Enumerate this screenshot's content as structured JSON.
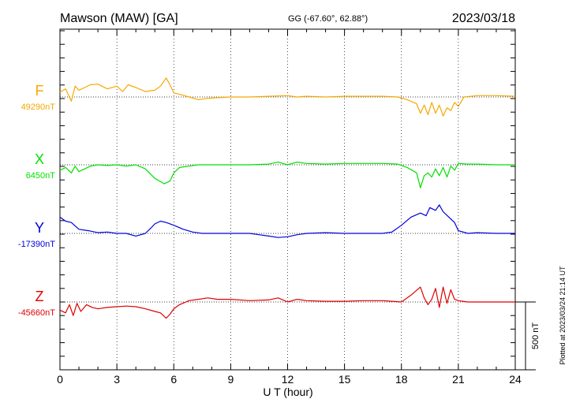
{
  "header": {
    "station": "Mawson (MAW)  [GA]",
    "coords": "GG (-67.60°,  62.88°)",
    "date": "2023/03/18"
  },
  "footer": {
    "plotted_note": "Plotted at 2023/03/24 21:14 UT",
    "scale_bar_label": "500 nT"
  },
  "colors": {
    "F": "#f5a800",
    "X": "#00e000",
    "Y": "#0000dd",
    "Z": "#e00000"
  },
  "chart_data": {
    "type": "line",
    "title": "",
    "xlabel": "U T (hour)",
    "xlim": [
      0,
      24
    ],
    "x_ticks": [
      0,
      3,
      6,
      9,
      12,
      15,
      18,
      21,
      24
    ],
    "x_tick_labels": [
      "0",
      "3",
      "6",
      "9",
      "12",
      "15",
      "18",
      "21",
      "24"
    ],
    "grid": true,
    "scale_bar_nT": 500,
    "series": [
      {
        "name": "F",
        "baseline_label": "49290nT",
        "baseline_nT": 49290,
        "x": [
          0,
          0.3,
          0.6,
          0.8,
          1,
          1.3,
          1.6,
          2,
          2.5,
          3,
          3.3,
          3.6,
          4,
          4.5,
          5,
          5.3,
          5.6,
          5.8,
          6,
          6.3,
          6.8,
          7.3,
          7.8,
          8.3,
          9,
          10,
          11,
          12,
          12.5,
          13,
          14,
          15,
          16,
          17,
          17.8,
          18.3,
          18.8,
          19,
          19.2,
          19.4,
          19.6,
          19.8,
          20,
          20.2,
          20.4,
          20.6,
          20.8,
          21,
          21.3,
          22,
          23,
          24
        ],
        "offsets_nT": [
          35,
          60,
          -30,
          80,
          50,
          70,
          90,
          95,
          60,
          80,
          40,
          90,
          70,
          40,
          50,
          80,
          140,
          90,
          30,
          20,
          0,
          -20,
          -10,
          -5,
          0,
          0,
          5,
          10,
          0,
          5,
          0,
          5,
          5,
          5,
          0,
          -20,
          -50,
          -120,
          -60,
          -130,
          -40,
          -120,
          -60,
          -140,
          -80,
          -100,
          -40,
          -70,
          0,
          10,
          10,
          5
        ]
      },
      {
        "name": "X",
        "baseline_label": "6450nT",
        "baseline_nT": 6450,
        "x": [
          0,
          0.3,
          0.6,
          0.8,
          1,
          1.3,
          1.6,
          2,
          2.5,
          3,
          3.5,
          4,
          4.5,
          5,
          5.5,
          5.8,
          6,
          6.3,
          6.8,
          7.3,
          8,
          9,
          10,
          11,
          11.5,
          12,
          12.5,
          13,
          14,
          15,
          16,
          17,
          17.8,
          18.3,
          18.8,
          19,
          19.2,
          19.4,
          19.6,
          19.8,
          20,
          20.2,
          20.4,
          20.6,
          20.8,
          21,
          21.5,
          22,
          23,
          24
        ],
        "offsets_nT": [
          -40,
          -20,
          -60,
          -10,
          -50,
          -30,
          -10,
          0,
          -5,
          0,
          -10,
          0,
          -30,
          -100,
          -140,
          -120,
          -60,
          -20,
          -10,
          0,
          0,
          0,
          0,
          5,
          20,
          0,
          20,
          10,
          5,
          10,
          10,
          10,
          5,
          -20,
          -60,
          -170,
          -80,
          -60,
          -90,
          -30,
          -80,
          -20,
          -90,
          -10,
          -40,
          10,
          5,
          5,
          0,
          0
        ]
      },
      {
        "name": "Y",
        "baseline_label": "-17390nT",
        "baseline_nT": -17390,
        "x": [
          0,
          0.3,
          0.6,
          1,
          1.5,
          2,
          2.5,
          3,
          3.5,
          4,
          4.5,
          4.8,
          5,
          5.3,
          5.6,
          6,
          6.5,
          7,
          7.5,
          8,
          9,
          10,
          10.5,
          11,
          11.5,
          12,
          12.5,
          13,
          14,
          15,
          16,
          17,
          17.5,
          18,
          18.5,
          19,
          19.3,
          19.5,
          19.8,
          20,
          20.2,
          20.5,
          20.8,
          21,
          21.5,
          22,
          23,
          24
        ],
        "offsets_nT": [
          120,
          90,
          80,
          30,
          20,
          5,
          10,
          0,
          0,
          -20,
          0,
          40,
          70,
          90,
          80,
          60,
          30,
          10,
          0,
          0,
          0,
          0,
          -10,
          -20,
          -30,
          -25,
          -10,
          0,
          5,
          0,
          0,
          0,
          10,
          60,
          120,
          150,
          130,
          190,
          170,
          210,
          160,
          120,
          80,
          20,
          0,
          5,
          0,
          0
        ]
      },
      {
        "name": "Z",
        "baseline_label": "-45660nT",
        "baseline_nT": -45660,
        "x": [
          0,
          0.3,
          0.5,
          0.7,
          0.9,
          1.1,
          1.4,
          1.7,
          2,
          2.5,
          3,
          3.5,
          4,
          4.5,
          5,
          5.3,
          5.6,
          5.8,
          6,
          6.3,
          6.8,
          7.3,
          7.8,
          8.3,
          9,
          10,
          11,
          11.5,
          12,
          12.5,
          13,
          14,
          15,
          16,
          17,
          17.5,
          18,
          18.5,
          19,
          19.2,
          19.4,
          19.6,
          19.8,
          20,
          20.2,
          20.4,
          20.6,
          20.8,
          21,
          21.5,
          22,
          23,
          24
        ],
        "offsets_nT": [
          -60,
          -80,
          -20,
          -100,
          -10,
          -70,
          -20,
          -40,
          -50,
          -40,
          -35,
          -30,
          -35,
          -50,
          -70,
          -80,
          -120,
          -90,
          -50,
          -20,
          10,
          20,
          30,
          20,
          20,
          10,
          15,
          30,
          0,
          20,
          10,
          5,
          5,
          10,
          10,
          5,
          0,
          50,
          110,
          30,
          -20,
          20,
          100,
          -40,
          110,
          -10,
          90,
          20,
          10,
          0,
          0,
          0,
          0
        ]
      }
    ]
  }
}
